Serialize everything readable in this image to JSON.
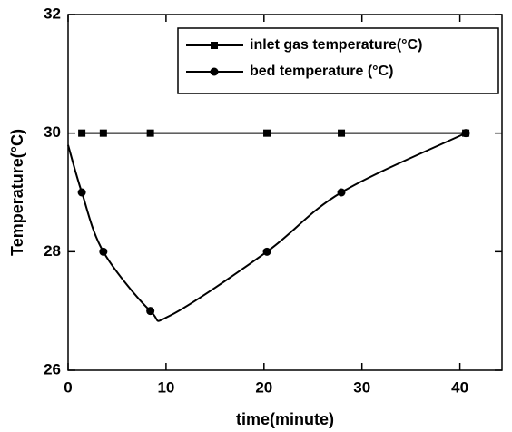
{
  "chart_data": {
    "type": "line",
    "xlabel": "time(minute)",
    "ylabel": "Temperature(°C)",
    "xlim": [
      0,
      44.3
    ],
    "xticks": [
      0,
      10,
      20,
      30,
      40
    ],
    "ylim": [
      26,
      32
    ],
    "yticks": [
      26,
      28,
      30,
      32
    ],
    "legend": "upper right",
    "series": [
      {
        "name": "inlet gas temperature(°C)",
        "color": "#000000",
        "marker": "square",
        "x": [
          1.4,
          3.6,
          8.4,
          20.3,
          27.9,
          40.6
        ],
        "values": [
          30,
          30,
          30,
          30,
          30,
          30
        ]
      },
      {
        "name": "bed temperature (°C)",
        "color": "#000000",
        "marker": "circle",
        "x": [
          1.4,
          3.6,
          8.4,
          20.3,
          27.9,
          40.6
        ],
        "values": [
          29,
          28,
          27,
          28,
          29,
          30
        ],
        "curve": {
          "x": [
            0,
            1.4,
            3.6,
            8.4,
            10.5,
            20.3,
            27.9,
            40.6
          ],
          "values": [
            29.8,
            29,
            28,
            27,
            26.93,
            28,
            29,
            30
          ]
        }
      }
    ]
  }
}
